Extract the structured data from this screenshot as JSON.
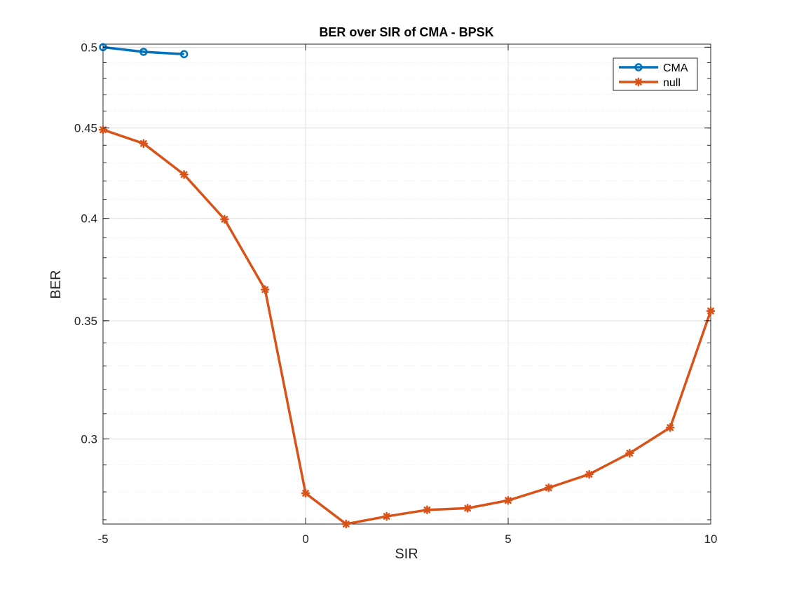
{
  "chart_data": {
    "type": "line",
    "title": "BER over SIR of CMA - BPSK",
    "xlabel": "SIR",
    "ylabel": "BER",
    "xlim": [
      -5,
      10
    ],
    "ylim": [
      0.2685,
      0.502
    ],
    "y_scale": "log",
    "grid": true,
    "minor_grid": true,
    "legend_position": "top-right",
    "x_ticks": [
      -5,
      0,
      5,
      10
    ],
    "y_ticks": [
      0.3,
      0.35,
      0.4,
      0.45,
      0.5
    ],
    "y_tick_labels": [
      "0.3",
      "0.35",
      "0.4",
      "0.45",
      "0.5"
    ],
    "series": [
      {
        "name": "CMA",
        "color": "#0072BD",
        "marker": "circle",
        "x": [
          -5,
          -4,
          -3
        ],
        "y": [
          0.5,
          0.497,
          0.4955
        ]
      },
      {
        "name": "null",
        "color": "#D95319",
        "marker": "asterisk",
        "x": [
          -5,
          -4,
          -3,
          -2,
          -1,
          0,
          1,
          2,
          3,
          4,
          5,
          6,
          7,
          8,
          9,
          10
        ],
        "y": [
          0.449,
          0.441,
          0.4235,
          0.3995,
          0.3645,
          0.2795,
          0.2685,
          0.2712,
          0.2735,
          0.2741,
          0.2769,
          0.2815,
          0.2865,
          0.2945,
          0.3045,
          0.3545
        ]
      }
    ]
  }
}
